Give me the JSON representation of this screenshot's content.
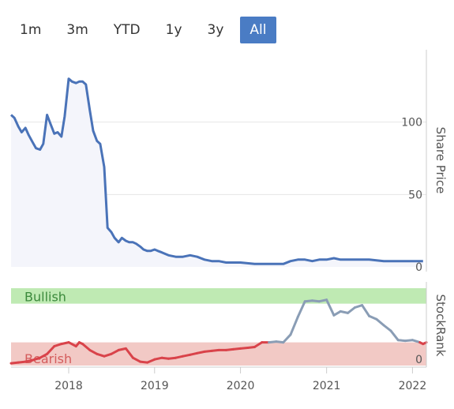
{
  "range_buttons": [
    {
      "label": "1m",
      "active": false
    },
    {
      "label": "3m",
      "active": false
    },
    {
      "label": "YTD",
      "active": false
    },
    {
      "label": "1y",
      "active": false
    },
    {
      "label": "3y",
      "active": false
    },
    {
      "label": "All",
      "active": true
    }
  ],
  "colors": {
    "price_line": "#4a73b8",
    "price_fill": "#f4f5fb",
    "bullish_band": "#bfeab3",
    "bullish_text": "#3c8a3c",
    "bearish_band": "#f2c9c5",
    "bearish_text": "#d45c5c",
    "rank_red": "#d9434a",
    "rank_grey": "#8a9db5",
    "grid": "#e6e6e6"
  },
  "chart_data": [
    {
      "type": "area",
      "ylabel": "Share Price",
      "y_ticks": [
        0,
        50,
        100
      ],
      "ylim": [
        0,
        150
      ],
      "xlim": [
        "2017-05",
        "2022-03"
      ],
      "x_ticks": [
        "2018",
        "2019",
        "2020",
        "2021",
        "2022"
      ],
      "series": [
        {
          "points": [
            [
              "2017-05-01",
              105
            ],
            [
              "2017-05-15",
              103
            ],
            [
              "2017-06-01",
              97
            ],
            [
              "2017-06-15",
              93
            ],
            [
              "2017-07-01",
              96
            ],
            [
              "2017-07-15",
              91
            ],
            [
              "2017-08-01",
              86
            ],
            [
              "2017-08-15",
              82
            ],
            [
              "2017-09-01",
              81
            ],
            [
              "2017-09-15",
              85
            ],
            [
              "2017-10-01",
              105
            ],
            [
              "2017-10-15",
              99
            ],
            [
              "2017-11-01",
              92
            ],
            [
              "2017-11-15",
              93
            ],
            [
              "2017-12-01",
              90
            ],
            [
              "2017-12-15",
              104
            ],
            [
              "2018-01-01",
              130
            ],
            [
              "2018-01-15",
              128
            ],
            [
              "2018-02-01",
              127
            ],
            [
              "2018-02-15",
              128
            ],
            [
              "2018-03-01",
              128
            ],
            [
              "2018-03-15",
              126
            ],
            [
              "2018-04-01",
              108
            ],
            [
              "2018-04-15",
              94
            ],
            [
              "2018-05-01",
              87
            ],
            [
              "2018-05-15",
              85
            ],
            [
              "2018-06-01",
              69
            ],
            [
              "2018-06-15",
              27
            ],
            [
              "2018-07-01",
              24
            ],
            [
              "2018-07-15",
              20
            ],
            [
              "2018-08-01",
              17
            ],
            [
              "2018-08-15",
              20
            ],
            [
              "2018-09-01",
              18
            ],
            [
              "2018-09-15",
              17
            ],
            [
              "2018-10-01",
              17
            ],
            [
              "2018-10-15",
              16
            ],
            [
              "2018-11-01",
              14
            ],
            [
              "2018-11-15",
              12
            ],
            [
              "2018-12-01",
              11
            ],
            [
              "2018-12-15",
              11
            ],
            [
              "2019-01-01",
              12
            ],
            [
              "2019-01-15",
              11
            ],
            [
              "2019-02-01",
              10
            ],
            [
              "2019-03-01",
              8
            ],
            [
              "2019-04-01",
              7
            ],
            [
              "2019-05-01",
              7
            ],
            [
              "2019-06-01",
              8
            ],
            [
              "2019-07-01",
              7
            ],
            [
              "2019-08-01",
              5
            ],
            [
              "2019-09-01",
              4
            ],
            [
              "2019-10-01",
              4
            ],
            [
              "2019-11-01",
              3
            ],
            [
              "2020-01-01",
              3
            ],
            [
              "2020-03-01",
              2
            ],
            [
              "2020-05-01",
              2
            ],
            [
              "2020-07-01",
              2
            ],
            [
              "2020-08-01",
              4
            ],
            [
              "2020-09-01",
              5
            ],
            [
              "2020-10-01",
              5
            ],
            [
              "2020-11-01",
              4
            ],
            [
              "2020-12-01",
              5
            ],
            [
              "2021-01-01",
              5
            ],
            [
              "2021-02-01",
              6
            ],
            [
              "2021-03-01",
              5
            ],
            [
              "2021-05-01",
              5
            ],
            [
              "2021-07-01",
              5
            ],
            [
              "2021-09-01",
              4
            ],
            [
              "2021-11-01",
              4
            ],
            [
              "2022-01-01",
              4
            ],
            [
              "2022-02-15",
              4
            ]
          ]
        }
      ]
    },
    {
      "type": "line",
      "ylabel": "StockRank",
      "y_ticks": [
        0
      ],
      "ylim": [
        0,
        100
      ],
      "bands": [
        {
          "label": "Bullish",
          "from": 80,
          "to": 100
        },
        {
          "label": "Bearish",
          "from": 0,
          "to": 30
        }
      ],
      "series": [
        {
          "points": [
            [
              "2017-05-01",
              3
            ],
            [
              "2017-06-01",
              4
            ],
            [
              "2017-07-01",
              5
            ],
            [
              "2017-08-01",
              7
            ],
            [
              "2017-09-01",
              10
            ],
            [
              "2017-10-01",
              15
            ],
            [
              "2017-11-01",
              25
            ],
            [
              "2017-12-01",
              28
            ],
            [
              "2018-01-01",
              30
            ],
            [
              "2018-02-01",
              25
            ],
            [
              "2018-02-15",
              30
            ],
            [
              "2018-03-01",
              28
            ],
            [
              "2018-04-01",
              20
            ],
            [
              "2018-05-01",
              15
            ],
            [
              "2018-06-01",
              12
            ],
            [
              "2018-07-01",
              15
            ],
            [
              "2018-08-01",
              20
            ],
            [
              "2018-09-01",
              22
            ],
            [
              "2018-10-01",
              10
            ],
            [
              "2018-11-01",
              5
            ],
            [
              "2018-12-01",
              4
            ],
            [
              "2019-01-01",
              8
            ],
            [
              "2019-02-01",
              10
            ],
            [
              "2019-03-01",
              9
            ],
            [
              "2019-04-01",
              10
            ],
            [
              "2019-05-01",
              12
            ],
            [
              "2019-06-01",
              14
            ],
            [
              "2019-07-01",
              16
            ],
            [
              "2019-08-01",
              18
            ],
            [
              "2019-09-01",
              19
            ],
            [
              "2019-10-01",
              20
            ],
            [
              "2019-11-01",
              20
            ],
            [
              "2019-12-01",
              21
            ],
            [
              "2020-01-01",
              22
            ],
            [
              "2020-02-01",
              23
            ],
            [
              "2020-03-01",
              24
            ],
            [
              "2020-04-01",
              30
            ],
            [
              "2020-05-01",
              30
            ],
            [
              "2020-06-01",
              31
            ],
            [
              "2020-07-01",
              30
            ],
            [
              "2020-08-01",
              40
            ],
            [
              "2020-09-01",
              63
            ],
            [
              "2020-10-01",
              83
            ],
            [
              "2020-11-01",
              84
            ],
            [
              "2020-12-01",
              83
            ],
            [
              "2021-01-01",
              85
            ],
            [
              "2021-02-01",
              65
            ],
            [
              "2021-03-01",
              70
            ],
            [
              "2021-04-01",
              68
            ],
            [
              "2021-05-01",
              75
            ],
            [
              "2021-06-01",
              78
            ],
            [
              "2021-07-01",
              64
            ],
            [
              "2021-08-01",
              60
            ],
            [
              "2021-09-01",
              52
            ],
            [
              "2021-10-01",
              45
            ],
            [
              "2021-11-01",
              33
            ],
            [
              "2021-12-01",
              32
            ],
            [
              "2022-01-01",
              33
            ],
            [
              "2022-02-01",
              30
            ],
            [
              "2022-02-15",
              28
            ],
            [
              "2022-03-01",
              30
            ]
          ]
        }
      ]
    }
  ]
}
